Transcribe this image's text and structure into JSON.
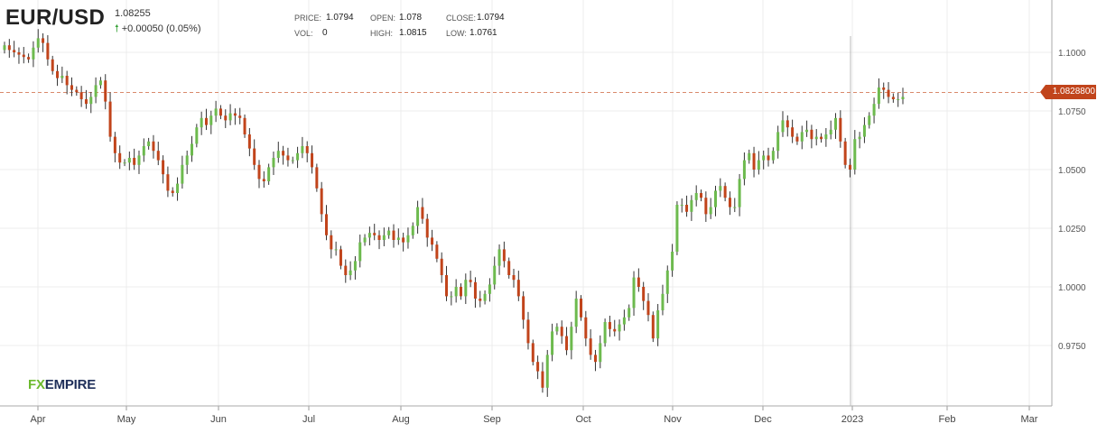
{
  "header": {
    "symbol": "EUR/USD",
    "last_price": "1.08255",
    "change": "+0.00050 (0.05%)",
    "change_icon": "arrow-up-icon",
    "stats": {
      "price_label": "PRICE:",
      "price_value": "1.0794",
      "open_label": "OPEN:",
      "open_value": "1.078",
      "close_label": "CLOSE:",
      "close_value": "1.0794",
      "vol_label": "VOL:",
      "vol_value": "0",
      "high_label": "HIGH:",
      "high_value": "1.0815",
      "low_label": "LOW:",
      "low_value": "1.0761"
    }
  },
  "price_marker": "1.0828800",
  "logo": {
    "fx": "FX",
    "rest": "EMPIRE"
  },
  "colors": {
    "up": "#6dba4e",
    "down": "#c1441b",
    "grid": "#ececec",
    "marker_line": "#d98a6c"
  },
  "chart_data": {
    "type": "candlestick",
    "x_axis": {
      "tick_labels": [
        "Apr",
        "May",
        "Jun",
        "Jul",
        "Aug",
        "Sep",
        "Oct",
        "Nov",
        "Dec",
        "2023",
        "Feb",
        "Mar"
      ]
    },
    "y_axis": {
      "tick_labels": [
        "1.1000",
        "1.0750",
        "1.0500",
        "1.0250",
        "1.0000",
        "0.9750"
      ],
      "range": [
        0.953,
        1.112
      ],
      "position": "right"
    },
    "grid": true,
    "reference_line": 1.08288,
    "series": {
      "closes": [
        1.103,
        1.101,
        1.1,
        1.099,
        1.098,
        1.097,
        1.102,
        1.106,
        1.104,
        1.097,
        1.092,
        1.089,
        1.09,
        1.086,
        1.084,
        1.083,
        1.08,
        1.078,
        1.081,
        1.086,
        1.088,
        1.079,
        1.064,
        1.057,
        1.053,
        1.053,
        1.055,
        1.052,
        1.056,
        1.06,
        1.062,
        1.058,
        1.054,
        1.048,
        1.041,
        1.04,
        1.044,
        1.052,
        1.056,
        1.061,
        1.068,
        1.072,
        1.069,
        1.073,
        1.076,
        1.073,
        1.071,
        1.074,
        1.073,
        1.072,
        1.065,
        1.059,
        1.052,
        1.046,
        1.045,
        1.051,
        1.055,
        1.058,
        1.056,
        1.054,
        1.054,
        1.057,
        1.06,
        1.057,
        1.051,
        1.042,
        1.031,
        1.022,
        1.016,
        1.016,
        1.009,
        1.005,
        1.007,
        1.011,
        1.019,
        1.021,
        1.023,
        1.022,
        1.02,
        1.022,
        1.024,
        1.02,
        1.021,
        1.019,
        1.022,
        1.026,
        1.034,
        1.029,
        1.021,
        1.018,
        1.012,
        1.005,
        0.996,
        0.996,
        1.0,
        0.996,
        1.003,
        1.002,
        0.995,
        0.994,
        0.997,
        1.001,
        1.009,
        1.016,
        1.011,
        1.005,
        1.003,
        0.996,
        0.986,
        0.976,
        0.968,
        0.964,
        0.957,
        0.971,
        0.981,
        0.983,
        0.979,
        0.973,
        0.983,
        0.995,
        0.987,
        0.978,
        0.971,
        0.968,
        0.976,
        0.985,
        0.982,
        0.981,
        0.984,
        0.987,
        0.991,
        1.004,
        1.0,
        0.994,
        0.988,
        0.978,
        0.99,
        0.997,
        1.007,
        1.015,
        1.035,
        1.035,
        1.032,
        1.037,
        1.04,
        1.038,
        1.031,
        1.034,
        1.041,
        1.043,
        1.038,
        1.034,
        1.034,
        1.046,
        1.054,
        1.057,
        1.05,
        1.054,
        1.056,
        1.054,
        1.058,
        1.066,
        1.071,
        1.068,
        1.064,
        1.062,
        1.066,
        1.067,
        1.063,
        1.064,
        1.063,
        1.065,
        1.067,
        1.072,
        1.062,
        1.052,
        1.05,
        1.063,
        1.064,
        1.069,
        1.073,
        1.078,
        1.085,
        1.084,
        1.081,
        1.08,
        1.08,
        1.081
      ]
    }
  }
}
